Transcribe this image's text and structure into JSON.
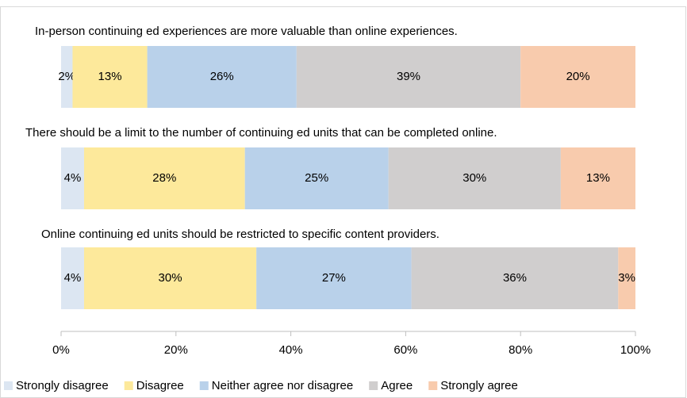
{
  "chart_data": {
    "type": "stacked-bar-horizontal",
    "categories": [
      "In-person continuing ed experiences are more valuable than online experiences.",
      "There should be a limit to the number of continuing ed units that can be completed online.",
      "Online continuing ed units should be restricted to specific content providers."
    ],
    "series": [
      {
        "name": "Strongly disagree",
        "color": "#dce6f2",
        "values": [
          2,
          4,
          4
        ],
        "value_labels": [
          "2%",
          "4%",
          "4%"
        ]
      },
      {
        "name": "Disagree",
        "color": "#fde99b",
        "values": [
          13,
          28,
          30
        ],
        "value_labels": [
          "13%",
          "28%",
          "30%"
        ]
      },
      {
        "name": "Neither agree nor disagree",
        "color": "#b9d1ea",
        "values": [
          26,
          25,
          27
        ],
        "value_labels": [
          "26%",
          "25%",
          "27%"
        ]
      },
      {
        "name": "Agree",
        "color": "#d0cece",
        "values": [
          39,
          30,
          36
        ],
        "value_labels": [
          "39%",
          "30%",
          "36%"
        ]
      },
      {
        "name": "Strongly agree",
        "color": "#f8cbad",
        "values": [
          20,
          13,
          3
        ],
        "value_labels": [
          "20%",
          "13%",
          "3%"
        ]
      }
    ],
    "xlim": [
      0,
      100
    ],
    "xticks": [
      {
        "value": 0,
        "label": "0%"
      },
      {
        "value": 20,
        "label": "20%"
      },
      {
        "value": 40,
        "label": "40%"
      },
      {
        "value": 60,
        "label": "60%"
      },
      {
        "value": 80,
        "label": "80%"
      },
      {
        "value": 100,
        "label": "100%"
      }
    ],
    "legend": "bottom"
  }
}
